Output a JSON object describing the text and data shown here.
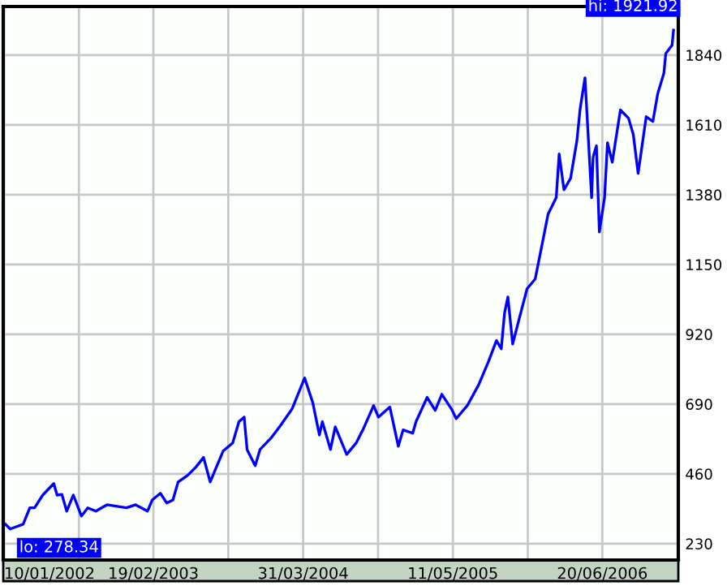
{
  "chart_data": {
    "type": "line",
    "x": [
      "2002-01-14",
      "2002-01-27",
      "2002-03-03",
      "2002-03-21",
      "2002-04-03",
      "2002-04-25",
      "2002-05-25",
      "2002-06-03",
      "2002-06-16",
      "2002-06-29",
      "2002-07-17",
      "2002-08-08",
      "2002-08-25",
      "2002-09-16",
      "2002-10-16",
      "2002-12-08",
      "2003-01-02",
      "2003-02-03",
      "2003-02-16",
      "2003-03-10",
      "2003-03-27",
      "2003-04-13",
      "2003-04-27",
      "2003-05-23",
      "2003-06-14",
      "2003-07-05",
      "2003-07-23",
      "2003-08-05",
      "2003-08-27",
      "2003-09-22",
      "2003-10-09",
      "2003-10-23",
      "2003-10-31",
      "2003-11-22",
      "2003-12-05",
      "2004-01-04",
      "2004-01-30",
      "2004-03-01",
      "2004-04-04",
      "2004-04-26",
      "2004-05-14",
      "2004-05-22",
      "2004-06-13",
      "2004-06-26",
      "2004-07-27",
      "2004-08-22",
      "2004-09-04",
      "2004-09-09",
      "2004-10-08",
      "2004-10-21",
      "2004-11-21",
      "2004-12-14",
      "2004-12-27",
      "2005-01-22",
      "2005-01-31",
      "2005-03-02",
      "2005-03-24",
      "2005-04-11",
      "2005-05-07",
      "2005-05-20",
      "2005-06-19",
      "2005-07-20",
      "2005-08-15",
      "2005-09-06",
      "2005-09-19",
      "2005-09-28",
      "2005-10-07",
      "2005-10-20",
      "2005-11-06",
      "2005-11-28",
      "2005-12-20",
      "2006-01-11",
      "2006-01-24",
      "2006-02-15",
      "2006-02-23",
      "2006-03-08",
      "2006-03-26",
      "2006-04-12",
      "2006-04-21",
      "2006-05-04",
      "2006-05-22",
      "2006-05-26",
      "2006-06-04",
      "2006-06-12",
      "2006-06-26",
      "2006-07-04",
      "2006-07-17",
      "2006-08-08",
      "2006-08-30",
      "2006-09-12",
      "2006-09-25",
      "2006-10-17",
      "2006-11-04",
      "2006-11-17",
      "2006-12-04",
      "2006-12-09",
      "2006-12-26",
      "2006-12-30"
    ],
    "series": [
      {
        "color": "#0000ff",
        "values": [
          294,
          278.34,
          294,
          348,
          348,
          390,
          428,
          390,
          392,
          337,
          390,
          321,
          348,
          337,
          358,
          348,
          358,
          337,
          374,
          396,
          364,
          374,
          433,
          455,
          482,
          514,
          433,
          471,
          535,
          562,
          632,
          647,
          540,
          487,
          540,
          578,
          620,
          674,
          776,
          695,
          588,
          632,
          540,
          615,
          524,
          562,
          594,
          605,
          685,
          647,
          680,
          551,
          605,
          594,
          632,
          712,
          669,
          722,
          674,
          642,
          685,
          754,
          829,
          899,
          872,
          990,
          1043,
          888,
          968,
          1070,
          1102,
          1236,
          1316,
          1370,
          1514,
          1396,
          1434,
          1557,
          1664,
          1765,
          1370,
          1504,
          1541,
          1257,
          1370,
          1551,
          1487,
          1659,
          1632,
          1578,
          1450,
          1637,
          1621,
          1712,
          1781,
          1845,
          1872,
          1921.92
        ]
      }
    ],
    "xlim": [
      "2002-01-08",
      "2007-01-12"
    ],
    "xticks": [
      {
        "value": "2002-01-10",
        "label": "10/01/2002"
      },
      {
        "value": "2002-08-01",
        "label": null
      },
      {
        "value": "2003-02-19",
        "label": "19/02/2003"
      },
      {
        "value": "2003-09-10",
        "label": null
      },
      {
        "value": "2004-03-31",
        "label": "31/03/2004"
      },
      {
        "value": "2004-10-20",
        "label": null
      },
      {
        "value": "2005-05-11",
        "label": "11/05/2005"
      },
      {
        "value": "2005-11-30",
        "label": null
      },
      {
        "value": "2006-06-20",
        "label": "20/06/2006"
      }
    ],
    "ylim": [
      176,
      2000
    ],
    "yticks": [
      230,
      460,
      690,
      920,
      1150,
      1380,
      1610,
      1840
    ],
    "grid": true,
    "line_style": "solid",
    "marker": "none",
    "annotations": [
      {
        "text": "hi: 1921.92",
        "x": "2006-12-30",
        "y": 1921.92
      },
      {
        "text": "lo: 278.34",
        "x": "2002-01-27",
        "y": 278.34
      }
    ]
  }
}
